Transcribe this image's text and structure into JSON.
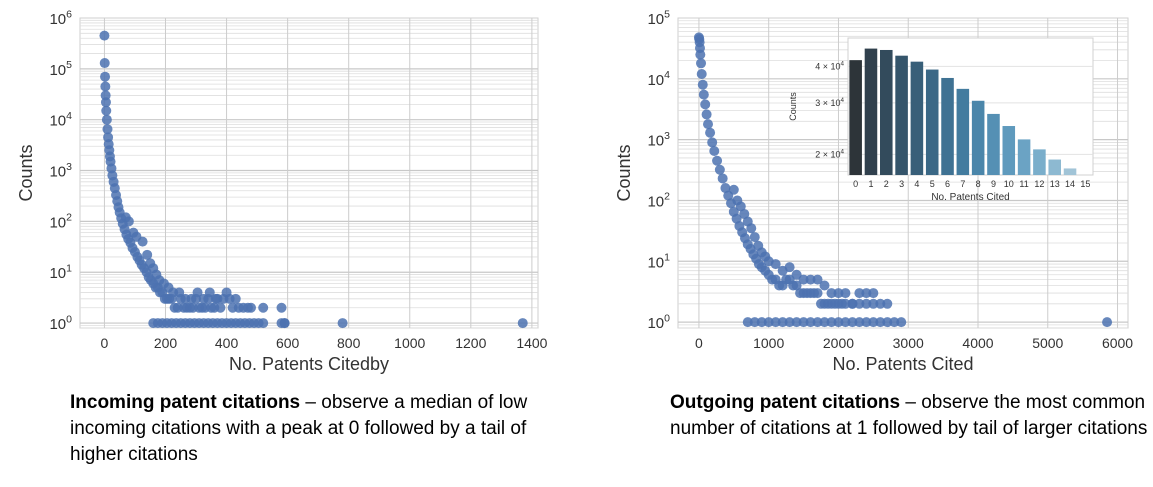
{
  "chart_data": [
    {
      "type": "scatter",
      "xlabel": "No. Patents Citedby",
      "ylabel": "Counts",
      "yscale": "log",
      "xlim": [
        -80,
        1420
      ],
      "ylim": [
        0.8,
        1000000
      ],
      "xticks": [
        "0",
        "200",
        "400",
        "600",
        "800",
        "1000",
        "1200",
        "1400"
      ],
      "xtick_values": [
        0,
        200,
        400,
        600,
        800,
        1000,
        1200,
        1400
      ],
      "yticks": [
        {
          "base": "10",
          "exp": "0"
        },
        {
          "base": "10",
          "exp": "1"
        },
        {
          "base": "10",
          "exp": "2"
        },
        {
          "base": "10",
          "exp": "3"
        },
        {
          "base": "10",
          "exp": "4"
        },
        {
          "base": "10",
          "exp": "5"
        },
        {
          "base": "10",
          "exp": "6"
        }
      ],
      "grid": true,
      "color": "#4c72b0",
      "points": [
        [
          0,
          450000
        ],
        [
          1,
          130000
        ],
        [
          2,
          70000
        ],
        [
          3,
          45000
        ],
        [
          4,
          30000
        ],
        [
          5,
          22000
        ],
        [
          6,
          15000
        ],
        [
          8,
          10000
        ],
        [
          10,
          6500
        ],
        [
          12,
          4500
        ],
        [
          14,
          3300
        ],
        [
          16,
          2500
        ],
        [
          18,
          1900
        ],
        [
          20,
          1500
        ],
        [
          23,
          1100
        ],
        [
          26,
          800
        ],
        [
          30,
          600
        ],
        [
          34,
          450
        ],
        [
          38,
          330
        ],
        [
          42,
          250
        ],
        [
          46,
          190
        ],
        [
          50,
          150
        ],
        [
          55,
          115
        ],
        [
          60,
          90
        ],
        [
          66,
          70
        ],
        [
          72,
          55
        ],
        [
          78,
          45
        ],
        [
          85,
          38
        ],
        [
          92,
          30
        ],
        [
          100,
          25
        ],
        [
          108,
          20
        ],
        [
          115,
          17
        ],
        [
          122,
          14
        ],
        [
          130,
          12
        ],
        [
          138,
          10
        ],
        [
          145,
          8
        ],
        [
          152,
          7
        ],
        [
          160,
          6
        ],
        [
          168,
          5
        ],
        [
          175,
          5
        ],
        [
          182,
          4
        ],
        [
          190,
          4
        ],
        [
          198,
          3
        ],
        [
          205,
          3
        ],
        [
          212,
          3
        ],
        [
          220,
          3
        ],
        [
          230,
          2
        ],
        [
          240,
          2
        ],
        [
          250,
          3
        ],
        [
          260,
          2
        ],
        [
          270,
          2
        ],
        [
          280,
          2
        ],
        [
          290,
          2
        ],
        [
          300,
          3
        ],
        [
          310,
          2
        ],
        [
          320,
          2
        ],
        [
          330,
          2
        ],
        [
          340,
          3
        ],
        [
          350,
          2
        ],
        [
          360,
          2
        ],
        [
          370,
          3
        ],
        [
          380,
          2
        ],
        [
          400,
          4
        ],
        [
          420,
          2
        ],
        [
          440,
          2
        ],
        [
          480,
          2
        ],
        [
          580,
          2
        ],
        [
          70,
          120
        ],
        [
          80,
          100
        ],
        [
          95,
          60
        ],
        [
          105,
          50
        ],
        [
          125,
          40
        ],
        [
          140,
          22
        ],
        [
          150,
          15
        ],
        [
          160,
          12
        ],
        [
          170,
          9
        ],
        [
          180,
          7
        ],
        [
          195,
          6
        ],
        [
          210,
          5
        ],
        [
          225,
          4
        ],
        [
          245,
          4
        ],
        [
          265,
          3
        ],
        [
          285,
          3
        ],
        [
          305,
          4
        ],
        [
          325,
          3
        ],
        [
          345,
          4
        ],
        [
          365,
          3
        ],
        [
          390,
          3
        ],
        [
          410,
          3
        ],
        [
          430,
          3
        ],
        [
          455,
          2
        ],
        [
          470,
          2
        ],
        [
          520,
          2
        ],
        [
          590,
          1
        ],
        [
          160,
          1
        ],
        [
          175,
          1
        ],
        [
          190,
          1
        ],
        [
          205,
          1
        ],
        [
          220,
          1
        ],
        [
          235,
          1
        ],
        [
          250,
          1
        ],
        [
          265,
          1
        ],
        [
          280,
          1
        ],
        [
          295,
          1
        ],
        [
          310,
          1
        ],
        [
          325,
          1
        ],
        [
          340,
          1
        ],
        [
          355,
          1
        ],
        [
          370,
          1
        ],
        [
          385,
          1
        ],
        [
          400,
          1
        ],
        [
          415,
          1
        ],
        [
          430,
          1
        ],
        [
          445,
          1
        ],
        [
          460,
          1
        ],
        [
          475,
          1
        ],
        [
          490,
          1
        ],
        [
          505,
          1
        ],
        [
          520,
          1
        ],
        [
          580,
          1
        ],
        [
          590,
          1
        ],
        [
          780,
          1
        ],
        [
          1370,
          1
        ]
      ]
    },
    {
      "type": "scatter",
      "xlabel": "No. Patents Cited",
      "ylabel": "Counts",
      "yscale": "log",
      "xlim": [
        -300,
        6150
      ],
      "ylim": [
        0.8,
        100000
      ],
      "xticks": [
        "0",
        "1000",
        "2000",
        "3000",
        "4000",
        "5000",
        "6000"
      ],
      "xtick_values": [
        0,
        1000,
        2000,
        3000,
        4000,
        5000,
        6000
      ],
      "yticks": [
        {
          "base": "10",
          "exp": "0"
        },
        {
          "base": "10",
          "exp": "1"
        },
        {
          "base": "10",
          "exp": "2"
        },
        {
          "base": "10",
          "exp": "3"
        },
        {
          "base": "10",
          "exp": "4"
        },
        {
          "base": "10",
          "exp": "5"
        }
      ],
      "grid": true,
      "color": "#4c72b0",
      "points": [
        [
          0,
          48000
        ],
        [
          5,
          45000
        ],
        [
          10,
          40000
        ],
        [
          15,
          32000
        ],
        [
          20,
          25000
        ],
        [
          30,
          18000
        ],
        [
          40,
          12000
        ],
        [
          55,
          8000
        ],
        [
          70,
          5500
        ],
        [
          90,
          3800
        ],
        [
          110,
          2600
        ],
        [
          130,
          1800
        ],
        [
          160,
          1300
        ],
        [
          190,
          900
        ],
        [
          220,
          650
        ],
        [
          260,
          450
        ],
        [
          300,
          320
        ],
        [
          340,
          230
        ],
        [
          380,
          160
        ],
        [
          420,
          120
        ],
        [
          460,
          90
        ],
        [
          500,
          65
        ],
        [
          540,
          50
        ],
        [
          580,
          38
        ],
        [
          620,
          30
        ],
        [
          660,
          24
        ],
        [
          700,
          19
        ],
        [
          740,
          16
        ],
        [
          780,
          13
        ],
        [
          820,
          11
        ],
        [
          860,
          9
        ],
        [
          900,
          8
        ],
        [
          950,
          7
        ],
        [
          1000,
          6
        ],
        [
          1050,
          5
        ],
        [
          1100,
          5
        ],
        [
          1150,
          4
        ],
        [
          1200,
          4
        ],
        [
          1250,
          5
        ],
        [
          1300,
          5
        ],
        [
          1350,
          4
        ],
        [
          1400,
          4
        ],
        [
          1450,
          3
        ],
        [
          1500,
          3
        ],
        [
          1550,
          3
        ],
        [
          1600,
          3
        ],
        [
          1650,
          3
        ],
        [
          1700,
          3
        ],
        [
          1750,
          2
        ],
        [
          1800,
          2
        ],
        [
          1850,
          2
        ],
        [
          1900,
          2
        ],
        [
          1950,
          2
        ],
        [
          2000,
          2
        ],
        [
          2050,
          2
        ],
        [
          2100,
          2
        ],
        [
          2200,
          2
        ],
        [
          2300,
          2
        ],
        [
          2400,
          2
        ],
        [
          2500,
          2
        ],
        [
          2600,
          2
        ],
        [
          500,
          150
        ],
        [
          550,
          100
        ],
        [
          600,
          80
        ],
        [
          650,
          60
        ],
        [
          700,
          45
        ],
        [
          750,
          35
        ],
        [
          800,
          25
        ],
        [
          850,
          18
        ],
        [
          900,
          14
        ],
        [
          950,
          12
        ],
        [
          1000,
          10
        ],
        [
          1100,
          9
        ],
        [
          1200,
          7
        ],
        [
          1300,
          8
        ],
        [
          1400,
          6
        ],
        [
          1500,
          5
        ],
        [
          1600,
          5
        ],
        [
          1700,
          5
        ],
        [
          1800,
          4
        ],
        [
          1900,
          3
        ],
        [
          2000,
          3
        ],
        [
          2100,
          3
        ],
        [
          2200,
          2
        ],
        [
          2300,
          3
        ],
        [
          2400,
          3
        ],
        [
          2500,
          3
        ],
        [
          2700,
          2
        ],
        [
          700,
          1
        ],
        [
          800,
          1
        ],
        [
          900,
          1
        ],
        [
          1000,
          1
        ],
        [
          1100,
          1
        ],
        [
          1200,
          1
        ],
        [
          1300,
          1
        ],
        [
          1400,
          1
        ],
        [
          1500,
          1
        ],
        [
          1600,
          1
        ],
        [
          1700,
          1
        ],
        [
          1800,
          1
        ],
        [
          1900,
          1
        ],
        [
          2000,
          1
        ],
        [
          2100,
          1
        ],
        [
          2200,
          1
        ],
        [
          2300,
          1
        ],
        [
          2400,
          1
        ],
        [
          2500,
          1
        ],
        [
          2600,
          1
        ],
        [
          2700,
          1
        ],
        [
          2800,
          1
        ],
        [
          2900,
          1
        ],
        [
          5850,
          1
        ]
      ]
    },
    {
      "type": "bar",
      "xlabel": "No. Patents Cited",
      "ylabel": "Counts",
      "yscale": "log",
      "ylim": [
        17000,
        50000
      ],
      "categories": [
        "0",
        "1",
        "2",
        "3",
        "4",
        "5",
        "6",
        "7",
        "8",
        "9",
        "10",
        "11",
        "12",
        "13",
        "14",
        "15"
      ],
      "values": [
        42000,
        46000,
        45500,
        43500,
        41500,
        39000,
        36500,
        33500,
        30500,
        27500,
        25000,
        22500,
        20800,
        19200,
        17900,
        17000
      ],
      "colors": [
        "#2d3439",
        "#30404d",
        "#334b5c",
        "#35556b",
        "#385f79",
        "#3b6886",
        "#3f7293",
        "#437c9f",
        "#4b86aa",
        "#5590b4",
        "#5f9abd",
        "#6ba3c4",
        "#7aaecb",
        "#8db9d1",
        "#a1c4d7",
        "#b5cfdc"
      ],
      "yticks": [
        {
          "base": "2 × 10",
          "exp": "4",
          "v": 20000
        },
        {
          "base": "3 × 10",
          "exp": "4",
          "v": 30000
        },
        {
          "base": "4 × 10",
          "exp": "4",
          "v": 40000
        }
      ]
    }
  ],
  "captions": {
    "left_bold": "Incoming patent citations",
    "left_rest": " – observe a median of low incoming citations with a peak at 0 followed by a tail of higher citations",
    "right_bold": "Outgoing patent citations",
    "right_rest": " –  observe the most common number of citations at 1 followed by tail of larger citations"
  }
}
